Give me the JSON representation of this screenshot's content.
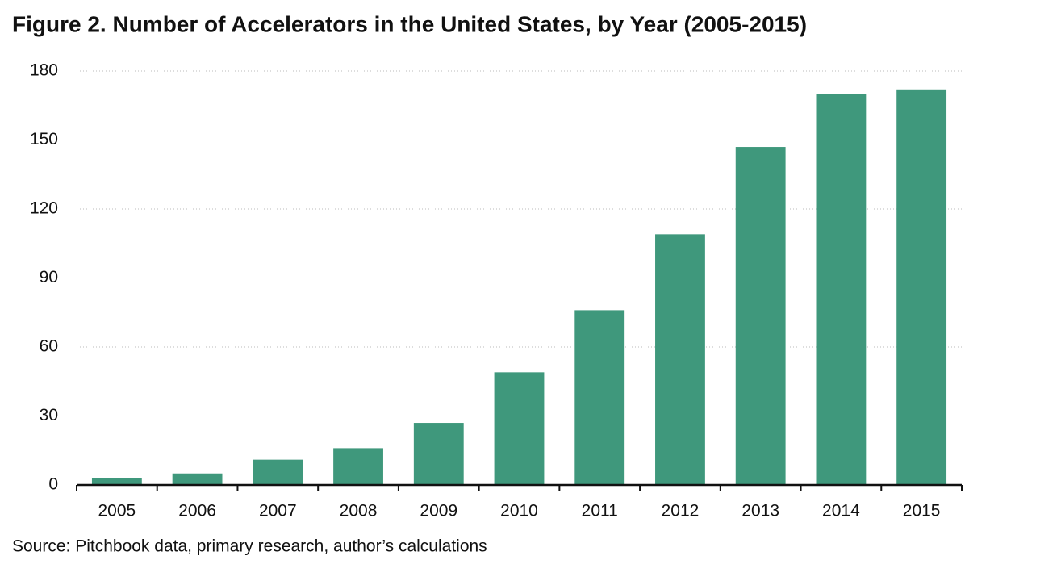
{
  "chart_data": {
    "type": "bar",
    "title": "Figure 2. Number of Accelerators in the United States, by Year (2005-2015)",
    "source": "Source: Pitchbook data, primary research, author’s calculations",
    "categories": [
      "2005",
      "2006",
      "2007",
      "2008",
      "2009",
      "2010",
      "2011",
      "2012",
      "2013",
      "2014",
      "2015"
    ],
    "values": [
      3,
      5,
      11,
      16,
      27,
      49,
      76,
      109,
      147,
      170,
      172
    ],
    "color": "#3f987c",
    "ylim": [
      0,
      180
    ],
    "yticks": [
      0,
      30,
      60,
      90,
      120,
      150,
      180
    ],
    "grid": true
  }
}
